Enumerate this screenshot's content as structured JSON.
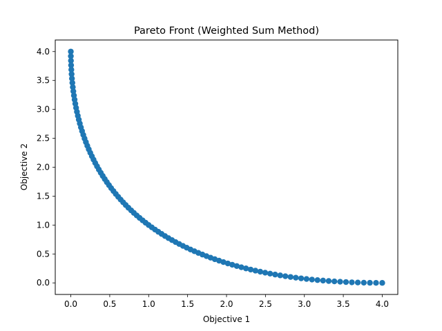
{
  "chart_data": {
    "type": "scatter",
    "title": "Pareto Front (Weighted Sum Method)",
    "xlabel": "Objective 1",
    "ylabel": "Objective 2",
    "xlim": [
      -0.2,
      4.2
    ],
    "ylim": [
      -0.2,
      4.2
    ],
    "xticks": [
      0.0,
      0.5,
      1.0,
      1.5,
      2.0,
      2.5,
      3.0,
      3.5,
      4.0
    ],
    "yticks": [
      0.0,
      0.5,
      1.0,
      1.5,
      2.0,
      2.5,
      3.0,
      3.5,
      4.0
    ],
    "xtick_labels": [
      "0.0",
      "0.5",
      "1.0",
      "1.5",
      "2.0",
      "2.5",
      "3.0",
      "3.5",
      "4.0"
    ],
    "ytick_labels": [
      "0.0",
      "0.5",
      "1.0",
      "1.5",
      "2.0",
      "2.5",
      "3.0",
      "3.5",
      "4.0"
    ],
    "grid": false,
    "legend": "none",
    "marker_color": "#1f77b4",
    "x": [
      0.0,
      0.0004,
      0.0016,
      0.0036,
      0.0064,
      0.01,
      0.0144,
      0.0196,
      0.0256,
      0.0324,
      0.04,
      0.0484,
      0.0576,
      0.0676,
      0.0784,
      0.09,
      0.1024,
      0.1156,
      0.1296,
      0.1444,
      0.16,
      0.1764,
      0.1936,
      0.2116,
      0.2304,
      0.25,
      0.2704,
      0.2916,
      0.3136,
      0.3364,
      0.36,
      0.3844,
      0.4096,
      0.4356,
      0.4624,
      0.49,
      0.5184,
      0.5476,
      0.5776,
      0.6084,
      0.64,
      0.6724,
      0.7056,
      0.7396,
      0.7744,
      0.81,
      0.8464,
      0.8836,
      0.9216,
      0.9604,
      1.0,
      1.0404,
      1.0816,
      1.1236,
      1.1664,
      1.21,
      1.2544,
      1.2996,
      1.3456,
      1.3924,
      1.44,
      1.4884,
      1.5376,
      1.5876,
      1.6384,
      1.69,
      1.7424,
      1.7956,
      1.8496,
      1.9044,
      1.96,
      2.0164,
      2.0736,
      2.1316,
      2.1904,
      2.25,
      2.3104,
      2.3716,
      2.4336,
      2.4964,
      2.56,
      2.6244,
      2.6896,
      2.7556,
      2.8224,
      2.89,
      2.9584,
      3.0276,
      3.0976,
      3.1684,
      3.24,
      3.3124,
      3.3856,
      3.4596,
      3.5344,
      3.61,
      3.6864,
      3.7636,
      3.8416,
      3.9204,
      4.0
    ],
    "y": [
      4.0,
      3.9204,
      3.8416,
      3.7636,
      3.6864,
      3.61,
      3.5344,
      3.4596,
      3.3856,
      3.3124,
      3.24,
      3.1684,
      3.0976,
      3.0276,
      2.9584,
      2.89,
      2.8224,
      2.7556,
      2.6896,
      2.6244,
      2.56,
      2.4964,
      2.4336,
      2.3716,
      2.3104,
      2.25,
      2.1904,
      2.1316,
      2.0736,
      2.0164,
      1.96,
      1.9044,
      1.8496,
      1.7956,
      1.7424,
      1.69,
      1.6384,
      1.5876,
      1.5376,
      1.4884,
      1.44,
      1.3924,
      1.3456,
      1.2996,
      1.2544,
      1.21,
      1.1664,
      1.1236,
      1.0816,
      1.0404,
      1.0,
      0.9604,
      0.9216,
      0.8836,
      0.8464,
      0.81,
      0.7744,
      0.7396,
      0.7056,
      0.6724,
      0.64,
      0.6084,
      0.5776,
      0.5476,
      0.5184,
      0.49,
      0.4624,
      0.4356,
      0.4096,
      0.3844,
      0.36,
      0.3364,
      0.3136,
      0.2916,
      0.2704,
      0.25,
      0.2304,
      0.2116,
      0.1936,
      0.1764,
      0.16,
      0.1444,
      0.1296,
      0.1156,
      0.1024,
      0.09,
      0.0784,
      0.0676,
      0.0576,
      0.0484,
      0.04,
      0.0324,
      0.0256,
      0.0196,
      0.0144,
      0.01,
      0.0064,
      0.0036,
      0.0016,
      0.0004,
      0.0
    ]
  }
}
